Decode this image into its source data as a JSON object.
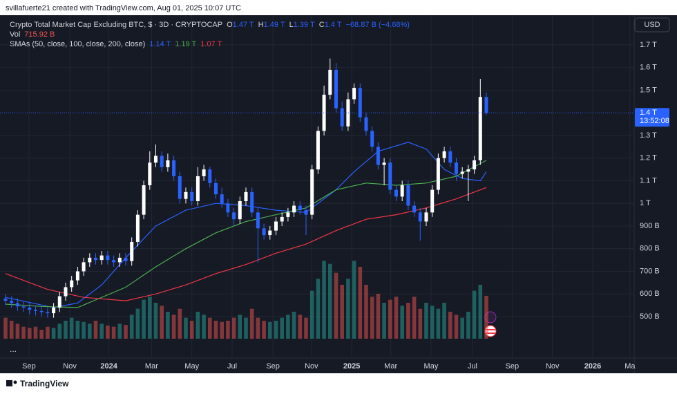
{
  "chart_data": {
    "type": "candlestick",
    "watermark": "svillafuerte21 created with TradingView.com, Aug 01, 2025 10:07 UTC",
    "brand": "TradingView",
    "currency": "USD",
    "menu_dots": "...",
    "header": {
      "title": "Crypto Total Market Cap Excluding BTC, $ · 3D · CRYPTOCAP",
      "ohlc": [
        {
          "key": "O",
          "label": "1.47 T"
        },
        {
          "key": "H",
          "label": "1.49 T"
        },
        {
          "key": "L",
          "label": "1.39 T"
        },
        {
          "key": "C",
          "label": "1.4 T"
        }
      ],
      "change": "−68.87 B (−4.68%)",
      "vol_key": "Vol",
      "vol": "715.92 B",
      "sma_key": "SMAs (50, close, 100, close, 200, close)"
    },
    "up_color": "#ffffff",
    "down_color": "#2962ff",
    "volume_up_color": "#26a69a",
    "volume_down_color": "#ef5350",
    "grid": true,
    "x": [
      0,
      1,
      2,
      3,
      4,
      5,
      6,
      7,
      8,
      9,
      10,
      11,
      12,
      13,
      14,
      15,
      16,
      17,
      18,
      19,
      20,
      21,
      22,
      23,
      24,
      25,
      26,
      27,
      28,
      29,
      30,
      31,
      32,
      33,
      34,
      35,
      36,
      37,
      38,
      39,
      40,
      41,
      42,
      43,
      44,
      45,
      46,
      47,
      48,
      49,
      50,
      51,
      52,
      53,
      54,
      55,
      56,
      57,
      58,
      59,
      60,
      61,
      62,
      63,
      64,
      65,
      66,
      67,
      68,
      69,
      70,
      71,
      72,
      73,
      74,
      75,
      76,
      77,
      78,
      79,
      80
    ],
    "open": [
      580,
      570,
      560,
      545,
      540,
      530,
      525,
      520,
      515,
      540,
      590,
      630,
      660,
      700,
      740,
      760,
      750,
      770,
      750,
      740,
      760,
      745,
      830,
      950,
      1080,
      1180,
      1210,
      1160,
      1190,
      1120,
      1020,
      1050,
      1010,
      1120,
      1150,
      1090,
      1040,
      1000,
      960,
      930,
      1010,
      1050,
      960,
      890,
      860,
      880,
      920,
      940,
      960,
      990,
      970,
      950,
      1150,
      1320,
      1480,
      1590,
      1420,
      1340,
      1460,
      1510,
      1380,
      1320,
      1250,
      1170,
      1180,
      1060,
      1030,
      1080,
      990,
      960,
      920,
      960,
      1060,
      1200,
      1230,
      1180,
      1130,
      1140,
      1150,
      1190,
      1470
    ],
    "high": [
      600,
      590,
      580,
      565,
      560,
      550,
      545,
      540,
      560,
      610,
      650,
      680,
      720,
      760,
      780,
      780,
      790,
      790,
      770,
      780,
      780,
      850,
      970,
      1100,
      1230,
      1260,
      1230,
      1220,
      1210,
      1140,
      1070,
      1070,
      1160,
      1170,
      1160,
      1110,
      1070,
      1020,
      980,
      1030,
      1070,
      1070,
      980,
      910,
      900,
      940,
      960,
      980,
      1010,
      1010,
      990,
      1170,
      1340,
      1520,
      1640,
      1620,
      1450,
      1490,
      1530,
      1530,
      1400,
      1340,
      1270,
      1200,
      1200,
      1080,
      1100,
      1100,
      1010,
      980,
      980,
      1080,
      1220,
      1250,
      1250,
      1200,
      1160,
      1170,
      1210,
      1550,
      1490
    ],
    "low": [
      550,
      540,
      525,
      520,
      510,
      505,
      500,
      495,
      495,
      520,
      570,
      610,
      640,
      680,
      720,
      730,
      730,
      730,
      720,
      720,
      725,
      725,
      810,
      930,
      1060,
      1160,
      1140,
      1140,
      1100,
      1000,
      1000,
      990,
      990,
      1100,
      1070,
      1020,
      980,
      940,
      900,
      910,
      990,
      940,
      740,
      840,
      840,
      860,
      900,
      920,
      940,
      950,
      860,
      930,
      1130,
      1300,
      1460,
      1400,
      1320,
      1320,
      1440,
      1360,
      1300,
      1230,
      1150,
      1080,
      1040,
      1010,
      1010,
      970,
      940,
      835,
      900,
      940,
      1040,
      1180,
      1160,
      1100,
      1110,
      1010,
      1130,
      1170,
      1390
    ],
    "close": [
      570,
      560,
      545,
      540,
      530,
      525,
      520,
      515,
      540,
      590,
      630,
      660,
      700,
      740,
      760,
      750,
      770,
      750,
      740,
      760,
      745,
      830,
      950,
      1080,
      1180,
      1210,
      1160,
      1190,
      1120,
      1020,
      1050,
      1010,
      1120,
      1150,
      1090,
      1040,
      1000,
      960,
      930,
      1010,
      1050,
      960,
      890,
      860,
      880,
      920,
      940,
      960,
      990,
      970,
      950,
      1150,
      1320,
      1480,
      1590,
      1420,
      1340,
      1460,
      1510,
      1380,
      1320,
      1250,
      1170,
      1180,
      1060,
      1030,
      1080,
      990,
      960,
      920,
      960,
      1060,
      1200,
      1230,
      1180,
      1130,
      1140,
      1150,
      1190,
      1470,
      1400
    ],
    "volume": [
      350,
      300,
      250,
      200,
      180,
      200,
      150,
      200,
      180,
      250,
      300,
      350,
      300,
      280,
      250,
      300,
      250,
      220,
      200,
      250,
      230,
      400,
      500,
      650,
      700,
      600,
      550,
      450,
      400,
      500,
      350,
      300,
      450,
      400,
      350,
      300,
      280,
      300,
      350,
      400,
      350,
      500,
      350,
      300,
      280,
      300,
      350,
      400,
      450,
      400,
      350,
      800,
      1000,
      1300,
      1250,
      1100,
      900,
      1000,
      1300,
      1200,
      900,
      700,
      750,
      600,
      650,
      700,
      550,
      600,
      700,
      500,
      600,
      550,
      500,
      600,
      450,
      400,
      350,
      450,
      800,
      900,
      715.92
    ],
    "smas": [
      {
        "color": "#2962ff",
        "last_label": "1.14 T",
        "x": [
          0,
          8,
          12,
          16,
          20,
          25,
          30,
          35,
          40,
          45,
          50,
          55,
          58,
          62,
          67,
          70,
          73,
          76,
          79,
          80
        ],
        "values": [
          585,
          540,
          560,
          640,
          760,
          900,
          970,
          1000,
          990,
          970,
          960,
          1060,
          1140,
          1230,
          1270,
          1240,
          1150,
          1110,
          1100,
          1140
        ]
      },
      {
        "color": "#4caf50",
        "last_label": "1.19 T",
        "x": [
          0,
          6,
          12,
          20,
          25,
          30,
          35,
          40,
          45,
          50,
          55,
          60,
          65,
          70,
          75,
          80
        ],
        "values": [
          555,
          545,
          540,
          630,
          720,
          800,
          870,
          920,
          950,
          980,
          1060,
          1090,
          1080,
          1090,
          1120,
          1190
        ]
      },
      {
        "color": "#f23645",
        "last_label": "1.07 T",
        "x": [
          0,
          7,
          13,
          20,
          25,
          30,
          35,
          40,
          45,
          50,
          55,
          60,
          65,
          70,
          75,
          80
        ],
        "values": [
          690,
          620,
          585,
          570,
          600,
          640,
          690,
          730,
          780,
          820,
          880,
          930,
          950,
          980,
          1020,
          1070
        ]
      }
    ],
    "last_price": {
      "value": 1400,
      "label": "1.4 T"
    },
    "countdown": "13:52:08",
    "xlim": [
      -0.92,
      104.6
    ],
    "ylim": [
      317,
      1831
    ],
    "volume_lim": [
      0,
      4500
    ],
    "yticks": [
      {
        "value": 500,
        "label": "500 B"
      },
      {
        "value": 600,
        "label": "600 B"
      },
      {
        "value": 700,
        "label": "700 B"
      },
      {
        "value": 800,
        "label": "800 B"
      },
      {
        "value": 900,
        "label": "900 B"
      },
      {
        "value": 1000,
        "label": "1 T"
      },
      {
        "value": 1100,
        "label": "1.1 T"
      },
      {
        "value": 1200,
        "label": "1.2 T"
      },
      {
        "value": 1300,
        "label": "1.3 T"
      },
      {
        "value": 1500,
        "label": "1.5 T"
      },
      {
        "value": 1600,
        "label": "1.6 T"
      },
      {
        "value": 1700,
        "label": "1.7 T"
      }
    ],
    "xticks": [
      {
        "value": 3.9,
        "label": "Sep"
      },
      {
        "value": 10.7,
        "label": "Nov"
      },
      {
        "value": 17.2,
        "label": "2024"
      },
      {
        "value": 24.3,
        "label": "Mar"
      },
      {
        "value": 31.0,
        "label": "May"
      },
      {
        "value": 37.7,
        "label": "Jul"
      },
      {
        "value": 44.5,
        "label": "Sep"
      },
      {
        "value": 50.9,
        "label": "Nov"
      },
      {
        "value": 57.6,
        "label": "2025"
      },
      {
        "value": 64.1,
        "label": "Mar"
      },
      {
        "value": 70.8,
        "label": "May"
      },
      {
        "value": 77.7,
        "label": "Jul"
      },
      {
        "value": 84.3,
        "label": "Sep"
      },
      {
        "value": 91.0,
        "label": "Nov"
      },
      {
        "value": 97.7,
        "label": "2026"
      },
      {
        "value": 103.9,
        "label": "Ma"
      }
    ]
  }
}
